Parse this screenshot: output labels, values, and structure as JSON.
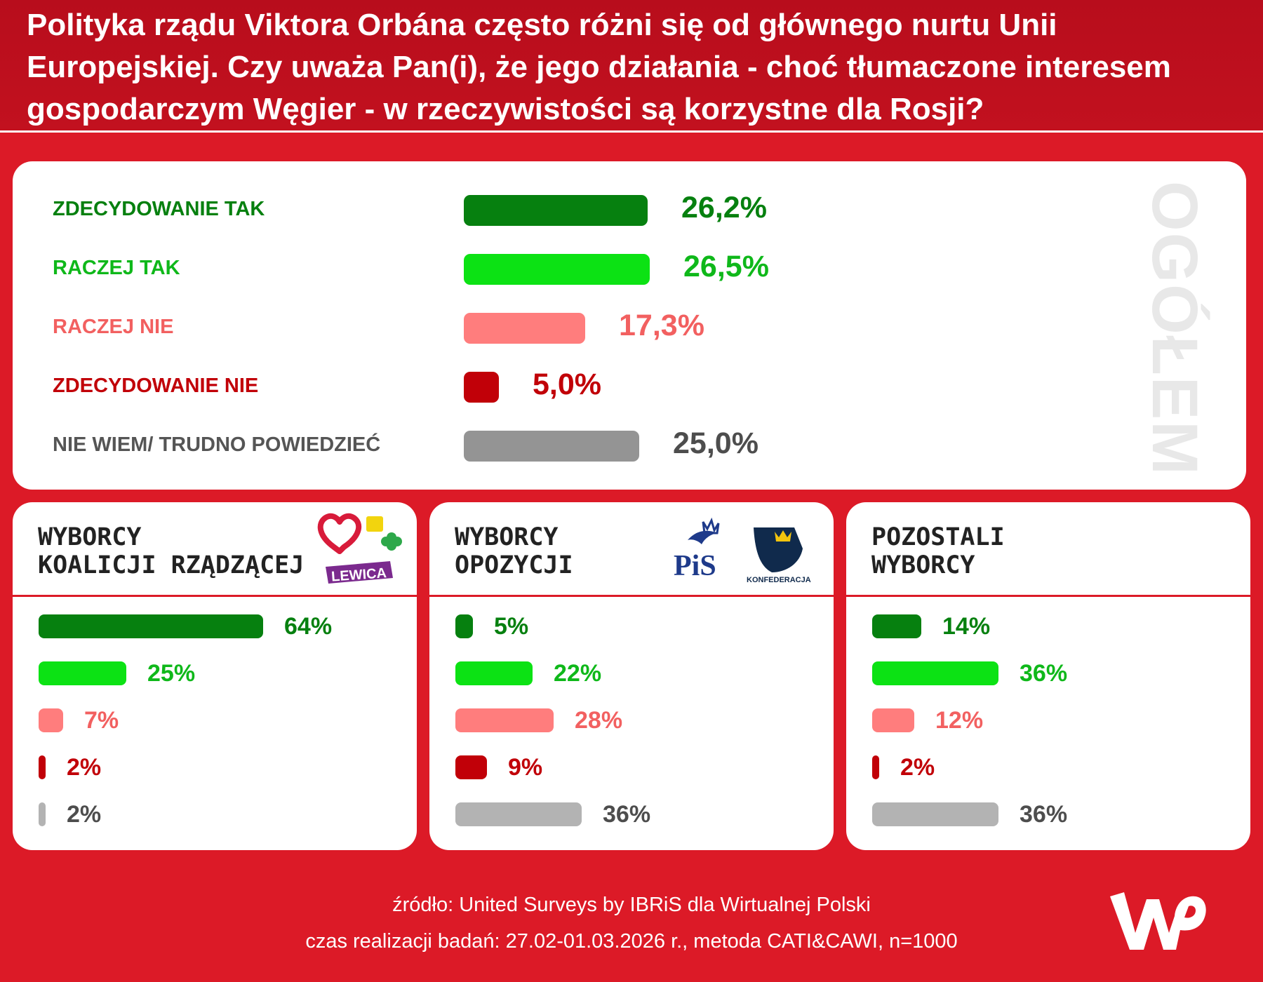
{
  "title": "Polityka rządu Viktora Orbána często różni się od głównego nurtu Unii Europejskiej. Czy uważa Pan(i), że jego działania - choć tłumaczone interesem gospodarczym Węgier - w rzeczywistości są korzystne dla Rosji?",
  "overall": {
    "side_label": "OGÓŁEM",
    "items": [
      {
        "label": "ZDECYDOWANIE TAK",
        "value": 26.2,
        "display": "26,2%",
        "color": "#06800f"
      },
      {
        "label": "RACZEJ TAK",
        "value": 26.5,
        "display": "26,5%",
        "color": "#0ce214"
      },
      {
        "label": "RACZEJ NIE",
        "value": 17.3,
        "display": "17,3%",
        "color": "#ff7d7d"
      },
      {
        "label": "ZDECYDOWANIE NIE",
        "value": 5.0,
        "display": "5,0%",
        "color": "#c10008"
      },
      {
        "label": "NIE WIEM/ TRUDNO POWIEDZIEĆ",
        "value": 25.0,
        "display": "25,0%",
        "color": "#949494"
      }
    ]
  },
  "groups": [
    {
      "title_line1": "WYBORCY",
      "title_line2": "KOALICJI RZĄDZĄCEJ",
      "logos": {
        "lewica": "LEWICA"
      },
      "values": [
        64,
        25,
        7,
        2,
        2
      ],
      "displays": [
        "64%",
        "25%",
        "7%",
        "2%",
        "2%"
      ]
    },
    {
      "title_line1": "WYBORCY",
      "title_line2": "OPOZYCJI",
      "logos": {
        "pis": "PiS",
        "konfederacja": "KONFEDERACJA"
      },
      "values": [
        5,
        22,
        28,
        9,
        36
      ],
      "displays": [
        "5%",
        "22%",
        "28%",
        "9%",
        "36%"
      ]
    },
    {
      "title_line1": "POZOSTALI",
      "title_line2": "WYBORCY",
      "values": [
        14,
        36,
        12,
        2,
        36
      ],
      "displays": [
        "14%",
        "36%",
        "12%",
        "2%",
        "36%"
      ]
    }
  ],
  "group_colors": [
    "#06800f",
    "#0ce214",
    "#ff7d7d",
    "#c10008",
    "#b3b3b3"
  ],
  "value_colors": [
    "#06800f",
    "#0fb81a",
    "#f26060",
    "#c10008",
    "#4d4d4d"
  ],
  "label_colors": [
    "#06800f",
    "#0fb81a",
    "#f26060",
    "#c10008",
    "#555555"
  ],
  "chart_data": [
    {
      "type": "bar",
      "title": "OGÓŁEM",
      "categories": [
        "ZDECYDOWANIE TAK",
        "RACZEJ TAK",
        "RACZEJ NIE",
        "ZDECYDOWANIE NIE",
        "NIE WIEM/ TRUDNO POWIEDZIEĆ"
      ],
      "values": [
        26.2,
        26.5,
        17.3,
        5.0,
        25.0
      ],
      "orientation": "horizontal"
    },
    {
      "type": "bar",
      "title": "WYBORCY KOALICJI RZĄDZĄCEJ",
      "categories": [
        "ZDECYDOWANIE TAK",
        "RACZEJ TAK",
        "RACZEJ NIE",
        "ZDECYDOWANIE NIE",
        "NIE WIEM/ TRUDNO POWIEDZIEĆ"
      ],
      "values": [
        64,
        25,
        7,
        2,
        2
      ],
      "orientation": "horizontal"
    },
    {
      "type": "bar",
      "title": "WYBORCY OPOZYCJI",
      "categories": [
        "ZDECYDOWANIE TAK",
        "RACZEJ TAK",
        "RACZEJ NIE",
        "ZDECYDOWANIE NIE",
        "NIE WIEM/ TRUDNO POWIEDZIEĆ"
      ],
      "values": [
        5,
        22,
        28,
        9,
        36
      ],
      "orientation": "horizontal"
    },
    {
      "type": "bar",
      "title": "POZOSTALI WYBORCY",
      "categories": [
        "ZDECYDOWANIE TAK",
        "RACZEJ TAK",
        "RACZEJ NIE",
        "ZDECYDOWANIE NIE",
        "NIE WIEM/ TRUDNO POWIEDZIEĆ"
      ],
      "values": [
        14,
        36,
        12,
        2,
        36
      ],
      "orientation": "horizontal"
    }
  ],
  "footer": {
    "source": "źródło: United Surveys by IBRiS dla Wirtualnej Polski",
    "method": "czas realizacji badań:  27.02-01.03.2026 r., metoda CATI&CAWI, n=1000"
  }
}
